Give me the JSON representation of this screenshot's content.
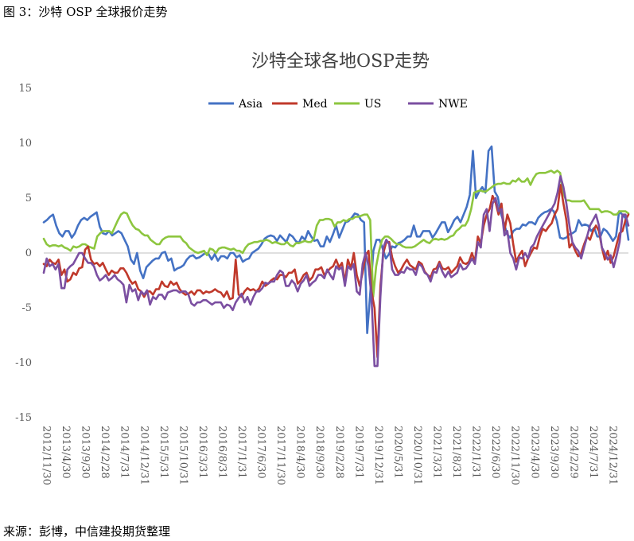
{
  "caption": "图 3：沙特 OSP 全球报价走势",
  "source": "来源：彭博，中信建投期货整理",
  "chart_data": {
    "type": "line",
    "title": "沙特全球各地OSP走势",
    "xlabel": "",
    "ylabel": "",
    "ylim": [
      -15,
      15
    ],
    "yticks": [
      -15,
      -10,
      -5,
      0,
      5,
      10,
      15
    ],
    "grid": false,
    "legend_position": "top",
    "x_tick_labels": [
      "2012/11/30",
      "2013/4/30",
      "2013/9/30",
      "2014/2/28",
      "2014/7/31",
      "2014/12/31",
      "2015/5/31",
      "2015/10/31",
      "2016/3/31",
      "2016/8/31",
      "2017/1/31",
      "2017/6/30",
      "2017/11/30",
      "2018/4/30",
      "2018/9/30",
      "2019/2/28",
      "2019/7/31",
      "2019/12/31",
      "2020/5/31",
      "2020/10/31",
      "2021/3/31",
      "2021/8/31",
      "2022/1/31",
      "2022/6/30",
      "2022/11/30",
      "2023/4/30",
      "2023/9/30",
      "2024/2/29",
      "2024/7/31",
      "2024/12/31"
    ],
    "series": [
      {
        "name": "Asia",
        "color": "#4472C4",
        "values": [
          2.8,
          3.0,
          3.3,
          3.5,
          2.5,
          1.8,
          1.5,
          2.0,
          2.0,
          1.4,
          1.8,
          2.5,
          3.0,
          3.2,
          3.0,
          3.3,
          3.5,
          3.7,
          2.4,
          1.8,
          1.7,
          2.0,
          1.6,
          1.8,
          2.0,
          1.8,
          1.2,
          0.6,
          -0.6,
          -1.0,
          0.0,
          -1.6,
          -2.3,
          -1.3,
          -1.0,
          -0.7,
          -0.5,
          -0.5,
          0.0,
          0.1,
          -0.7,
          -0.5,
          -1.6,
          -1.4,
          -1.3,
          -1.1,
          -0.6,
          -0.3,
          -0.2,
          -0.5,
          -0.4,
          -0.2,
          0.0,
          -0.1,
          -0.6,
          -0.1,
          -0.7,
          -0.3,
          -0.3,
          -0.5,
          0.0,
          0.0,
          -0.4,
          -0.2,
          -0.8,
          -0.6,
          -0.5,
          0.0,
          0.2,
          0.4,
          0.8,
          1.3,
          1.5,
          1.6,
          1.5,
          1.1,
          1.6,
          1.3,
          1.0,
          1.7,
          1.5,
          1.1,
          0.9,
          1.5,
          1.2,
          2.0,
          1.5,
          1.1,
          1.2,
          0.6,
          0.6,
          1.5,
          1.0,
          1.7,
          2.5,
          1.4,
          2.1,
          2.8,
          2.9,
          3.2,
          3.6,
          3.5,
          3.0,
          2.8,
          -7.3,
          -3.6,
          0.2,
          1.2,
          1.2,
          0.4,
          -0.5,
          -0.1,
          0.6,
          0.5,
          0.9,
          1.0,
          1.2,
          1.5,
          1.5,
          2.5,
          1.5,
          1.5,
          2.0,
          2.0,
          2.0,
          1.4,
          1.8,
          2.3,
          2.8,
          2.8,
          1.9,
          2.4,
          3.0,
          3.3,
          2.8,
          3.5,
          4.2,
          5.3,
          9.3,
          5.0,
          5.6,
          6.0,
          5.5,
          9.3,
          9.7,
          5.6,
          5.1,
          3.6,
          2.7,
          1.7,
          1.4,
          2.0,
          2.2,
          2.2,
          2.6,
          2.5,
          2.8,
          2.8,
          2.6,
          3.2,
          3.5,
          3.7,
          3.8,
          4.0,
          3.8,
          2.9,
          1.4,
          1.3,
          1.4,
          1.7,
          1.8,
          2.0,
          3.0,
          2.5,
          2.6,
          2.5,
          2.0,
          2.3,
          1.5,
          1.5,
          2.2,
          2.0,
          1.6,
          1.1,
          1.5,
          3.8,
          3.5,
          3.2,
          1.2
        ]
      },
      {
        "name": "Med",
        "color": "#C0392B",
        "values": [
          -1.0,
          -1.2,
          -0.6,
          -0.9,
          -1.0,
          -0.6,
          -2.0,
          -1.5,
          -2.6,
          -2.4,
          -1.8,
          -2.0,
          -1.4,
          -1.3,
          0.3,
          0.6,
          -0.6,
          -1.0,
          -0.9,
          -1.2,
          -0.9,
          -1.5,
          -2.0,
          -1.6,
          -1.8,
          -1.8,
          -1.4,
          -1.4,
          -1.8,
          -2.4,
          -2.8,
          -2.6,
          -3.3,
          -3.5,
          -4.0,
          -3.5,
          -3.5,
          -3.8,
          -3.3,
          -3.3,
          -2.6,
          -3.0,
          -3.1,
          -2.6,
          -2.9,
          -2.7,
          -3.3,
          -3.6,
          -3.8,
          -3.7,
          -3.5,
          -3.8,
          -3.4,
          -3.4,
          -3.7,
          -3.5,
          -3.6,
          -3.5,
          -3.3,
          -3.5,
          -3.6,
          -4.0,
          -3.5,
          -4.2,
          -4.1,
          -0.6,
          -3.8,
          -4.0,
          -3.5,
          -3.2,
          -3.4,
          -3.3,
          -3.5,
          -3.2,
          -2.6,
          -3.0,
          -2.8,
          -2.5,
          -2.3,
          -2.4,
          -2.0,
          -2.0,
          -2.2,
          -1.8,
          -1.8,
          -1.5,
          -2.8,
          -2.5,
          -2.0,
          -1.8,
          -2.5,
          -2.2,
          -1.5,
          -1.5,
          -1.3,
          -2.0,
          -1.7,
          -1.4,
          -1.2,
          -0.6,
          -1.3,
          -0.9,
          -2.7,
          -0.6,
          -1.4,
          0.0,
          -2.0,
          -3.0,
          -1.8,
          -0.2,
          0.2,
          -3.5,
          -5.0,
          -9.5,
          -3.0,
          0.0,
          1.0,
          1.0,
          -0.4,
          -1.2,
          -1.8,
          -1.5,
          -1.0,
          -0.6,
          -1.1,
          -1.3,
          -1.5,
          -0.8,
          -1.0,
          -1.7,
          -2.0,
          -2.2,
          -1.5,
          -1.4,
          -0.8,
          -1.4,
          -1.5,
          -1.3,
          -1.8,
          -1.5,
          -1.2,
          -0.4,
          -0.9,
          -1.0,
          -0.8,
          0.0,
          -0.8,
          1.5,
          0.9,
          2.5,
          3.5,
          4.0,
          5.2,
          4.6,
          3.5,
          4.5,
          2.0,
          3.5,
          2.7,
          0.8,
          -0.8,
          -0.2,
          0.2,
          -1.2,
          -0.5,
          0.0,
          0.5,
          0.4,
          1.5,
          2.2,
          2.0,
          2.4,
          2.7,
          3.5,
          4.0,
          6.2,
          4.5,
          3.0,
          0.5,
          0.9,
          0.2,
          -0.3,
          0.0,
          0.8,
          1.5,
          1.2,
          2.0,
          2.5,
          2.0,
          0.5,
          -0.6,
          0.2,
          -0.9,
          -0.3,
          0.8,
          1.8,
          2.0,
          3.0,
          3.5
        ]
      },
      {
        "name": "US",
        "color": "#8DC63F",
        "values": [
          1.3,
          0.8,
          0.6,
          0.7,
          0.7,
          0.6,
          0.7,
          0.5,
          0.4,
          0.2,
          0.6,
          0.5,
          0.6,
          0.8,
          0.8,
          0.6,
          0.5,
          0.4,
          1.5,
          1.8,
          2.0,
          2.0,
          2.0,
          1.8,
          2.4,
          3.0,
          3.5,
          3.7,
          3.6,
          3.0,
          2.5,
          2.2,
          2.1,
          1.8,
          1.6,
          1.6,
          1.2,
          1.0,
          0.8,
          0.8,
          1.2,
          1.4,
          1.5,
          1.5,
          1.5,
          1.5,
          1.5,
          1.1,
          0.9,
          0.5,
          0.3,
          0.1,
          0.0,
          0.1,
          0.2,
          -0.2,
          0.4,
          0.3,
          0.0,
          0.4,
          0.5,
          0.5,
          0.4,
          0.3,
          0.4,
          0.2,
          0.2,
          0.0,
          0.5,
          0.8,
          0.9,
          1.0,
          1.0,
          1.1,
          1.1,
          1.2,
          1.1,
          0.9,
          1.0,
          0.9,
          0.8,
          0.8,
          1.0,
          0.7,
          0.6,
          0.9,
          0.9,
          1.0,
          1.1,
          1.0,
          1.0,
          1.3,
          2.5,
          3.0,
          3.0,
          3.1,
          3.1,
          3.0,
          2.4,
          2.8,
          2.8,
          3.0,
          2.9,
          3.1,
          3.1,
          3.3,
          3.3,
          3.4,
          3.5,
          3.5,
          3.0,
          -4.0,
          -1.2,
          0.2,
          1.2,
          1.5,
          1.5,
          1.3,
          1.0,
          0.8,
          0.8,
          0.6,
          0.5,
          0.5,
          0.5,
          0.6,
          0.8,
          1.0,
          1.2,
          1.0,
          0.9,
          1.2,
          1.3,
          1.2,
          1.3,
          1.2,
          1.3,
          1.5,
          1.6,
          2.0,
          2.2,
          2.5,
          2.5,
          3.0,
          4.0,
          5.5,
          5.6,
          5.7,
          5.6,
          5.6,
          5.8,
          6.0,
          6.2,
          6.3,
          6.3,
          6.4,
          6.3,
          6.3,
          6.6,
          6.5,
          6.8,
          6.5,
          6.5,
          6.8,
          6.2,
          6.8,
          7.2,
          7.3,
          7.3,
          7.3,
          7.4,
          7.5,
          7.3,
          7.5,
          7.3,
          5.5,
          4.8,
          4.8,
          4.7,
          4.7,
          4.7,
          4.7,
          4.8,
          4.4,
          4.0,
          4.0,
          4.0,
          4.0,
          3.7,
          3.8,
          3.8,
          3.7,
          3.5,
          3.5,
          3.8,
          3.8,
          3.8,
          3.6
        ]
      },
      {
        "name": "NWE",
        "color": "#7B4FA1",
        "values": [
          -1.8,
          -0.5,
          -1.2,
          -1.0,
          -1.5,
          -1.0,
          -3.2,
          -3.2,
          -1.5,
          -1.2,
          -1.0,
          -0.5,
          0.0,
          0.0,
          -0.5,
          -0.9,
          -0.9,
          -1.2,
          -2.0,
          -2.5,
          -2.3,
          -2.0,
          -2.5,
          -2.3,
          -2.0,
          -2.4,
          -2.6,
          -2.9,
          -4.5,
          -2.9,
          -3.5,
          -3.3,
          -4.3,
          -3.5,
          -3.8,
          -3.4,
          -4.7,
          -4.0,
          -4.2,
          -3.8,
          -3.8,
          -4.2,
          -3.6,
          -3.5,
          -3.4,
          -3.4,
          -3.6,
          -3.5,
          -3.5,
          -3.8,
          -4.6,
          -4.8,
          -4.5,
          -4.5,
          -4.3,
          -4.3,
          -4.5,
          -4.7,
          -4.5,
          -4.5,
          -4.5,
          -5.0,
          -4.7,
          -4.8,
          -5.2,
          -4.5,
          -4.1,
          -3.7,
          -4.5,
          -4.0,
          -4.7,
          -4.0,
          -3.5,
          -3.5,
          -3.2,
          -2.7,
          -2.8,
          -2.6,
          -2.6,
          -2.0,
          -1.6,
          -1.8,
          -3.0,
          -3.0,
          -2.5,
          -2.8,
          -3.5,
          -2.8,
          -2.5,
          -2.0,
          -3.0,
          -2.7,
          -2.5,
          -2.0,
          -2.0,
          -2.3,
          -1.5,
          -2.0,
          -2.4,
          -1.2,
          -1.5,
          -1.3,
          -3.0,
          -1.2,
          -1.5,
          -1.0,
          -3.5,
          -3.8,
          -1.0,
          0.0,
          -1.2,
          -4.0,
          -10.3,
          -10.3,
          -4.0,
          0.5,
          1.2,
          0.8,
          -1.5,
          -2.0,
          -2.0,
          -1.7,
          -1.8,
          -1.3,
          -1.5,
          -1.5,
          -2.0,
          -1.0,
          -1.2,
          -1.8,
          -2.0,
          -2.6,
          -1.7,
          -1.8,
          -1.0,
          -1.7,
          -2.2,
          -1.7,
          -2.2,
          -2.0,
          -1.8,
          -1.0,
          -1.5,
          -1.4,
          -1.0,
          -0.5,
          -1.0,
          1.0,
          0.5,
          3.5,
          4.0,
          2.0,
          4.5,
          5.0,
          3.8,
          4.0,
          1.6,
          2.0,
          0.0,
          -0.5,
          -1.5,
          -0.4,
          -0.5,
          0.0,
          -0.5,
          0.5,
          0.8,
          1.5,
          2.0,
          2.5,
          3.0,
          3.5,
          4.0,
          4.5,
          5.5,
          7.0,
          6.0,
          4.5,
          2.5,
          1.0,
          0.5,
          0.2,
          -0.5,
          0.5,
          1.5,
          2.5,
          3.0,
          3.5,
          2.5,
          0.5,
          0.0,
          -0.6,
          -0.2,
          -1.3,
          -0.2,
          1.0,
          3.5,
          3.5,
          2.5
        ]
      }
    ]
  }
}
